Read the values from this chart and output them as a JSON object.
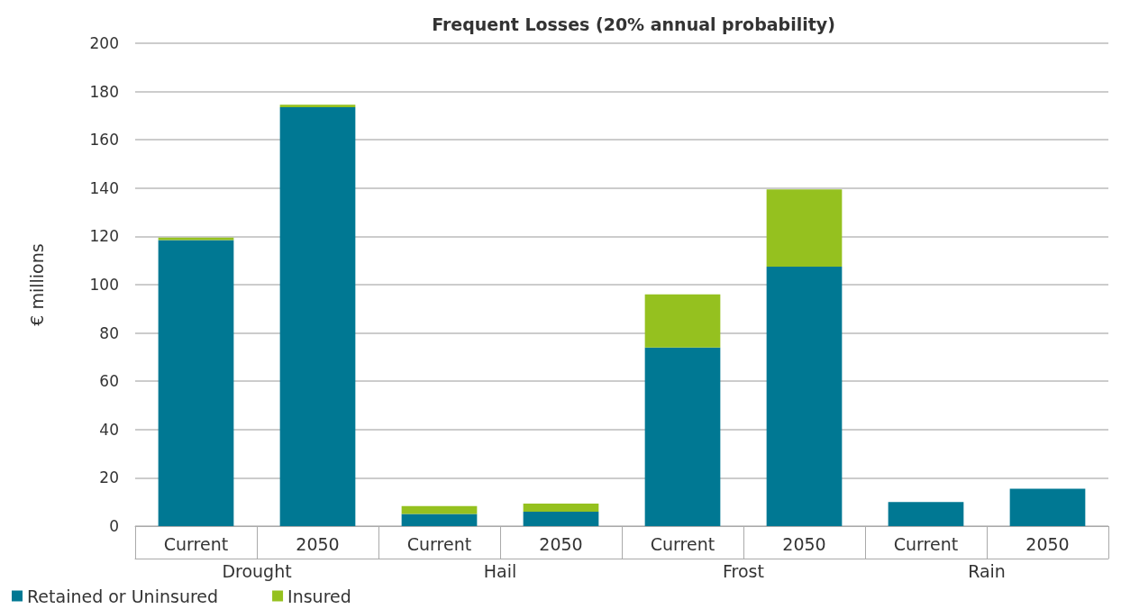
{
  "chart_data": {
    "type": "bar",
    "title": "Frequent Losses (20% annual probability)",
    "ylabel": "€ millions",
    "categories": [
      "Current",
      "2050",
      "Current",
      "2050",
      "Current",
      "2050",
      "Current",
      "2050"
    ],
    "annotations": [
      "Drought",
      "Hail",
      "Frost",
      "Rain"
    ],
    "series": [
      {
        "name": "Retained or Uninsured",
        "color": "#007893",
        "values": [
          118.5,
          173.5,
          5,
          6,
          74,
          107.5,
          10,
          15.5
        ]
      },
      {
        "name": "Insured",
        "color": "#95c11f",
        "values": [
          1,
          1,
          3.3,
          3.3,
          22,
          32,
          0,
          0
        ]
      }
    ],
    "stacked": true,
    "ylim": [
      0,
      200
    ],
    "yticks": [
      0,
      20,
      40,
      60,
      80,
      100,
      120,
      140,
      160,
      180,
      200
    ],
    "grid": "y",
    "legend": "bottom left"
  }
}
